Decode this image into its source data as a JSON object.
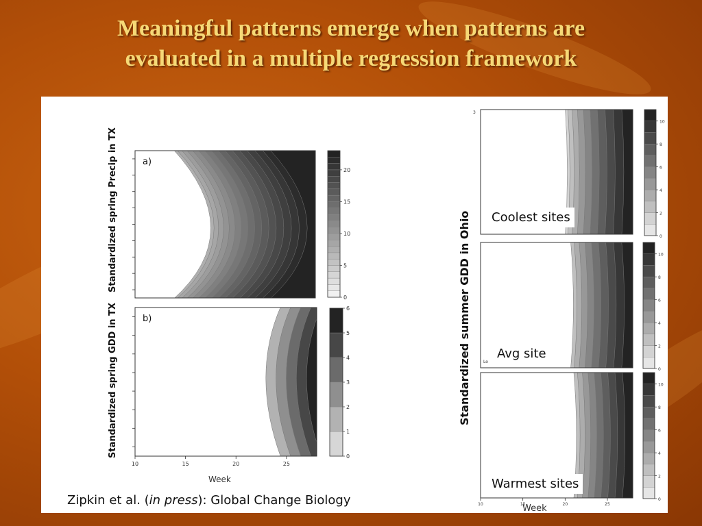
{
  "slide": {
    "title_line1": "Meaningful patterns emerge when patterns are",
    "title_line2": "evaluated in a multiple regression framework",
    "citation_author": "Zipkin et al. (",
    "citation_italic": "in press",
    "citation_rest": "): Global Change Biology"
  },
  "colors": {
    "title": "#f6d977",
    "background": "#b24f08",
    "panel": "#ffffff"
  },
  "chart_data": [
    {
      "type": "heatmap",
      "title": "",
      "panel_label": "a)",
      "xlabel": "Week",
      "ylabel": "Standardized spring Precip in TX",
      "xlim": [
        10,
        28
      ],
      "xticks": [],
      "colorbar_ticks": [
        0,
        5,
        10,
        15,
        20
      ],
      "colorbar_range": [
        0,
        23
      ],
      "colorbar_levels": 23
    },
    {
      "type": "heatmap",
      "title": "",
      "panel_label": "b)",
      "xlabel": "Week",
      "ylabel": "Standardized spring GDD in TX",
      "xlim": [
        10,
        28
      ],
      "xticks": [
        10,
        15,
        20,
        25
      ],
      "colorbar_ticks": [
        0,
        1,
        2,
        3,
        4,
        5,
        6
      ],
      "colorbar_range": [
        0,
        6
      ],
      "colorbar_levels": 6
    },
    {
      "type": "heatmap",
      "title": "Coolest sites",
      "xlabel": "Week",
      "ylabel": "Standardized summer GDD in Ohio",
      "xlim": [
        10,
        28
      ],
      "ytick_top": "3",
      "colorbar_ticks": [
        0,
        2,
        4,
        6,
        8,
        10
      ],
      "colorbar_range": [
        0,
        11
      ],
      "colorbar_levels": 11
    },
    {
      "type": "heatmap",
      "title": "Avg site",
      "xlabel": "Week",
      "ylabel": "Standardized summer GDD in Ohio",
      "xlim": [
        10,
        28
      ],
      "ytick_label": "Lo",
      "colorbar_ticks": [
        0,
        2,
        4,
        6,
        8,
        10
      ],
      "colorbar_range": [
        0,
        11
      ],
      "colorbar_levels": 11
    },
    {
      "type": "heatmap",
      "title": "Warmest sites",
      "xlabel": "Week",
      "ylabel": "Standardized summer GDD in Ohio",
      "xlim": [
        10,
        28
      ],
      "xticks": [
        10,
        15,
        20,
        25
      ],
      "colorbar_ticks": [
        0,
        2,
        4,
        6,
        8,
        10
      ],
      "colorbar_range": [
        0,
        11
      ],
      "colorbar_levels": 11
    }
  ]
}
